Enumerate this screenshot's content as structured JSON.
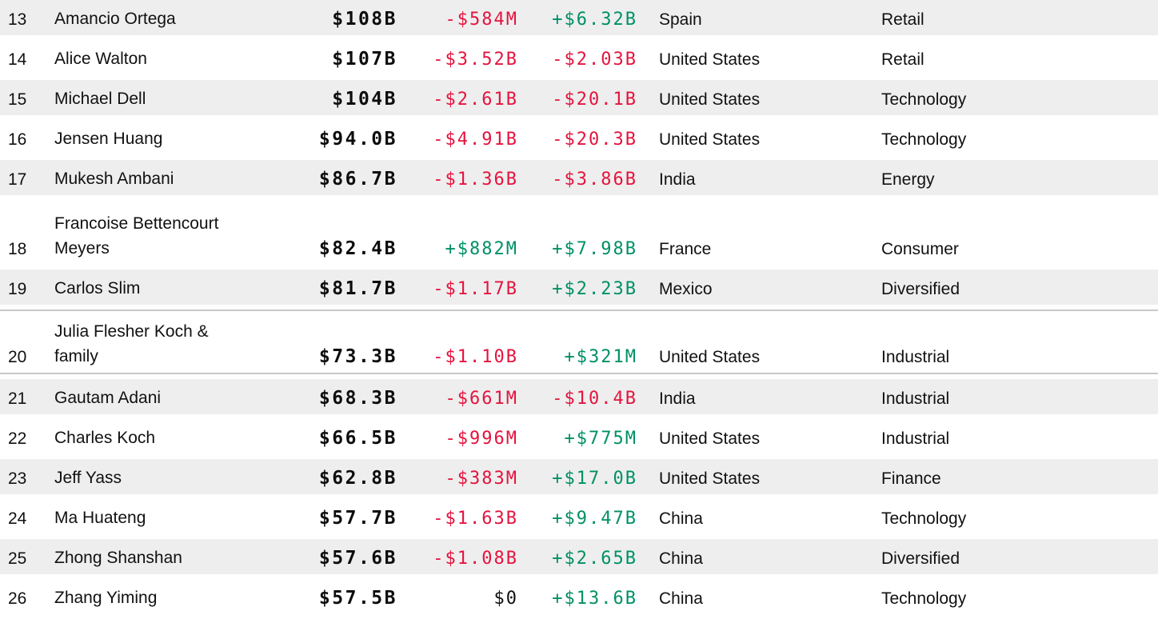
{
  "app": "billionaires-ranking-table",
  "colors": {
    "negative_text": "#e4143e",
    "positive_text": "#009066",
    "neutral_text": "#111111",
    "row_stripe": "#eeeeee",
    "row_hover_border": "#c8c8c8",
    "background": "#ffffff"
  },
  "table": {
    "columns": [
      "rank",
      "name",
      "net_worth",
      "last_change",
      "ytd_change",
      "country",
      "industry"
    ],
    "rows": [
      {
        "rank": "13",
        "name": "Amancio Ortega",
        "net_worth": "$108B",
        "last_change": "-$584M",
        "last_change_color": "red",
        "ytd_change": "+$6.32B",
        "ytd_change_color": "green",
        "country": "Spain",
        "industry": "Retail",
        "shade": "gray",
        "tall": false,
        "bordered": false
      },
      {
        "rank": "14",
        "name": "Alice Walton",
        "net_worth": "$107B",
        "last_change": "-$3.52B",
        "last_change_color": "red",
        "ytd_change": "-$2.03B",
        "ytd_change_color": "red",
        "country": "United States",
        "industry": "Retail",
        "shade": "white",
        "tall": false,
        "bordered": false
      },
      {
        "rank": "15",
        "name": "Michael Dell",
        "net_worth": "$104B",
        "last_change": "-$2.61B",
        "last_change_color": "red",
        "ytd_change": "-$20.1B",
        "ytd_change_color": "red",
        "country": "United States",
        "industry": "Technology",
        "shade": "gray",
        "tall": false,
        "bordered": false
      },
      {
        "rank": "16",
        "name": "Jensen Huang",
        "net_worth": "$94.0B",
        "last_change": "-$4.91B",
        "last_change_color": "red",
        "ytd_change": "-$20.3B",
        "ytd_change_color": "red",
        "country": "United States",
        "industry": "Technology",
        "shade": "white",
        "tall": false,
        "bordered": false
      },
      {
        "rank": "17",
        "name": "Mukesh Ambani",
        "net_worth": "$86.7B",
        "last_change": "-$1.36B",
        "last_change_color": "red",
        "ytd_change": "-$3.86B",
        "ytd_change_color": "red",
        "country": "India",
        "industry": "Energy",
        "shade": "gray",
        "tall": false,
        "bordered": false
      },
      {
        "rank": "18",
        "name": "Francoise Bettencourt Meyers",
        "net_worth": "$82.4B",
        "last_change": "+$882M",
        "last_change_color": "green",
        "ytd_change": "+$7.98B",
        "ytd_change_color": "green",
        "country": "France",
        "industry": "Consumer",
        "shade": "white",
        "tall": true,
        "bordered": false
      },
      {
        "rank": "19",
        "name": "Carlos Slim",
        "net_worth": "$81.7B",
        "last_change": "-$1.17B",
        "last_change_color": "red",
        "ytd_change": "+$2.23B",
        "ytd_change_color": "green",
        "country": "Mexico",
        "industry": "Diversified",
        "shade": "gray",
        "tall": false,
        "bordered": false
      },
      {
        "rank": "20",
        "name": "Julia Flesher Koch & family",
        "net_worth": "$73.3B",
        "last_change": "-$1.10B",
        "last_change_color": "red",
        "ytd_change": "+$321M",
        "ytd_change_color": "green",
        "country": "United States",
        "industry": "Industrial",
        "shade": "white",
        "tall": true,
        "bordered": true
      },
      {
        "rank": "21",
        "name": "Gautam Adani",
        "net_worth": "$68.3B",
        "last_change": "-$661M",
        "last_change_color": "red",
        "ytd_change": "-$10.4B",
        "ytd_change_color": "red",
        "country": "India",
        "industry": "Industrial",
        "shade": "gray",
        "tall": false,
        "bordered": false
      },
      {
        "rank": "22",
        "name": "Charles Koch",
        "net_worth": "$66.5B",
        "last_change": "-$996M",
        "last_change_color": "red",
        "ytd_change": "+$775M",
        "ytd_change_color": "green",
        "country": "United States",
        "industry": "Industrial",
        "shade": "white",
        "tall": false,
        "bordered": false
      },
      {
        "rank": "23",
        "name": "Jeff Yass",
        "net_worth": "$62.8B",
        "last_change": "-$383M",
        "last_change_color": "red",
        "ytd_change": "+$17.0B",
        "ytd_change_color": "green",
        "country": "United States",
        "industry": "Finance",
        "shade": "gray",
        "tall": false,
        "bordered": false
      },
      {
        "rank": "24",
        "name": "Ma Huateng",
        "net_worth": "$57.7B",
        "last_change": "-$1.63B",
        "last_change_color": "red",
        "ytd_change": "+$9.47B",
        "ytd_change_color": "green",
        "country": "China",
        "industry": "Technology",
        "shade": "white",
        "tall": false,
        "bordered": false
      },
      {
        "rank": "25",
        "name": "Zhong Shanshan",
        "net_worth": "$57.6B",
        "last_change": "-$1.08B",
        "last_change_color": "red",
        "ytd_change": "+$2.65B",
        "ytd_change_color": "green",
        "country": "China",
        "industry": "Diversified",
        "shade": "gray",
        "tall": false,
        "bordered": false
      },
      {
        "rank": "26",
        "name": "Zhang Yiming",
        "net_worth": "$57.5B",
        "last_change": "$0",
        "last_change_color": "black",
        "ytd_change": "+$13.6B",
        "ytd_change_color": "green",
        "country": "China",
        "industry": "Technology",
        "shade": "white",
        "tall": false,
        "bordered": false
      }
    ]
  }
}
